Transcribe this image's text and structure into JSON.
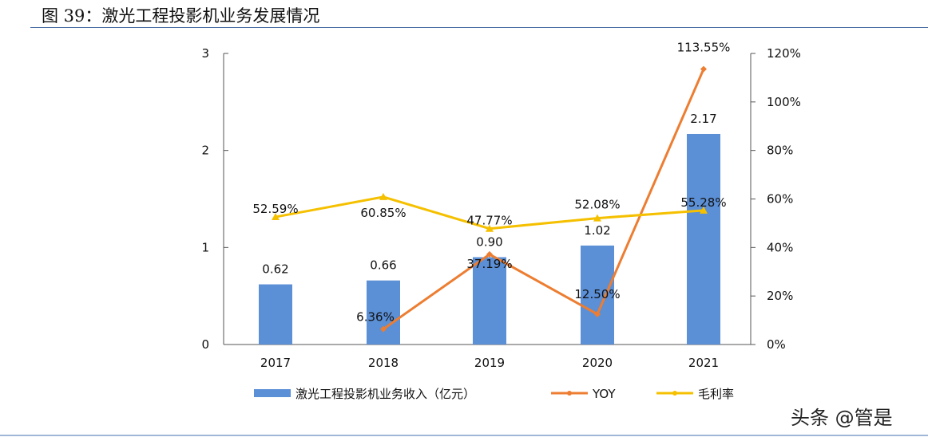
{
  "title": "图 39：激光工程投影机业务发展情况",
  "watermark": "头条 @管是",
  "chart_data": {
    "type": "bar+line",
    "categories": [
      "2017",
      "2018",
      "2019",
      "2020",
      "2021"
    ],
    "left_axis": {
      "ylim": [
        0,
        3
      ],
      "ticks": [
        "0",
        "1",
        "2",
        "3"
      ]
    },
    "right_axis": {
      "ylim": [
        0,
        120
      ],
      "ticks": [
        "0%",
        "20%",
        "40%",
        "60%",
        "80%",
        "100%",
        "120%"
      ]
    },
    "series": [
      {
        "name": "激光工程投影机业务收入（亿元）",
        "type": "bar",
        "axis": "left",
        "color": "#5b8fd6",
        "values": [
          0.62,
          0.66,
          0.9,
          1.02,
          2.17
        ],
        "labels": [
          "0.62",
          "0.66",
          "0.90",
          "1.02",
          "2.17"
        ]
      },
      {
        "name": "YOY",
        "type": "line",
        "axis": "right",
        "color": "#ed7d31",
        "values": [
          null,
          6.36,
          37.19,
          12.5,
          113.55
        ],
        "labels": [
          "",
          "6.36%",
          "37.19%",
          "12.50%",
          "113.55%"
        ]
      },
      {
        "name": "毛利率",
        "type": "line",
        "axis": "right",
        "color": "#f5c000",
        "values": [
          52.59,
          60.85,
          47.77,
          52.08,
          55.28
        ],
        "labels": [
          "52.59%",
          "60.85%",
          "47.77%",
          "52.08%",
          "55.28%"
        ]
      }
    ],
    "legend": "bottom",
    "grid": false
  }
}
